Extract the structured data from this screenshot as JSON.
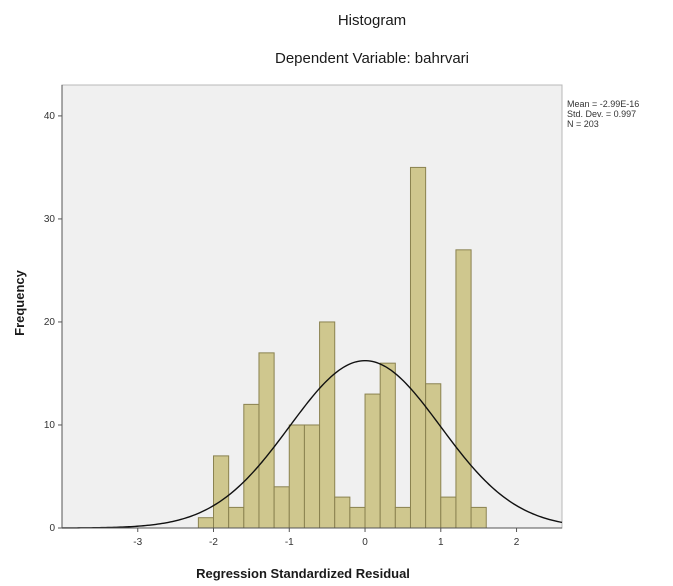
{
  "chart_data": {
    "type": "bar",
    "title": "Histogram",
    "subtitle": "Dependent Variable: bahrvari",
    "xlabel": "Regression Standardized Residual",
    "ylabel": "Frequency",
    "xlim": [
      -4,
      2.6
    ],
    "ylim": [
      0,
      43
    ],
    "x_ticks": [
      -3,
      -2,
      -1,
      0,
      1,
      2
    ],
    "y_ticks": [
      0,
      10,
      20,
      30,
      40
    ],
    "x_tick_labels": [
      "-3",
      "-2",
      "-1",
      "0",
      "1",
      "2"
    ],
    "y_tick_labels": [
      "0",
      "10",
      "20",
      "30",
      "40"
    ],
    "bin_width": 0.2,
    "bins": [
      {
        "x_start": -2.2,
        "x_end": -2.0,
        "value": 1
      },
      {
        "x_start": -2.0,
        "x_end": -1.8,
        "value": 7
      },
      {
        "x_start": -1.8,
        "x_end": -1.6,
        "value": 2
      },
      {
        "x_start": -1.6,
        "x_end": -1.4,
        "value": 12
      },
      {
        "x_start": -1.4,
        "x_end": -1.2,
        "value": 17
      },
      {
        "x_start": -1.2,
        "x_end": -1.0,
        "value": 4
      },
      {
        "x_start": -1.0,
        "x_end": -0.8,
        "value": 10
      },
      {
        "x_start": -0.8,
        "x_end": -0.6,
        "value": 10
      },
      {
        "x_start": -0.6,
        "x_end": -0.4,
        "value": 20
      },
      {
        "x_start": -0.4,
        "x_end": -0.2,
        "value": 3
      },
      {
        "x_start": -0.2,
        "x_end": 0.0,
        "value": 2
      },
      {
        "x_start": 0.0,
        "x_end": 0.2,
        "value": 13
      },
      {
        "x_start": 0.2,
        "x_end": 0.4,
        "value": 16
      },
      {
        "x_start": 0.4,
        "x_end": 0.6,
        "value": 2
      },
      {
        "x_start": 0.6,
        "x_end": 0.8,
        "value": 35
      },
      {
        "x_start": 0.8,
        "x_end": 1.0,
        "value": 14
      },
      {
        "x_start": 1.0,
        "x_end": 1.2,
        "value": 3
      },
      {
        "x_start": 1.2,
        "x_end": 1.4,
        "value": 27
      },
      {
        "x_start": 1.4,
        "x_end": 1.6,
        "value": 2
      }
    ],
    "normal_curve": {
      "mean": 0,
      "sd": 0.997,
      "n": 203
    },
    "stats": [
      "Mean = -2.99E-16",
      "Std. Dev. = 0.997",
      "N = 203"
    ],
    "legend_position": "top-right",
    "grid": false
  },
  "colors": {
    "bar_fill": "#cfc78e",
    "bar_stroke": "#8a8250",
    "plot_background": "#f0f0f0",
    "curve": "#111111"
  }
}
